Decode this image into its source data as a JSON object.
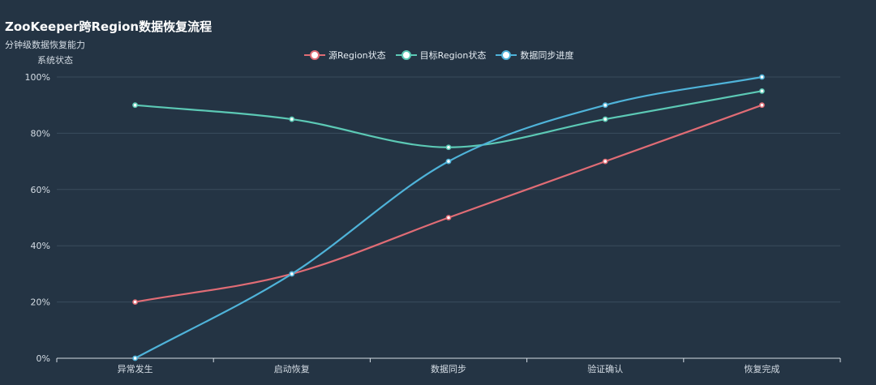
{
  "chart_data": {
    "type": "line",
    "title": "ZooKeeper跨Region数据恢复流程",
    "subtitle": "分钟级数据恢复能力",
    "ylabel": "系统状态",
    "xlabel": "",
    "categories": [
      "异常发生",
      "启动恢复",
      "数据同步",
      "验证确认",
      "恢复完成"
    ],
    "ylim": [
      0,
      100
    ],
    "yticks": [
      0,
      20,
      40,
      60,
      80,
      100
    ],
    "ytick_suffix": "%",
    "grid": true,
    "legend_position": "top-center",
    "smooth": true,
    "series": [
      {
        "name": "源Region状态",
        "color": "#e06c75",
        "values": [
          20,
          30,
          50,
          70,
          90
        ]
      },
      {
        "name": "目标Region状态",
        "color": "#5cc9b5",
        "values": [
          90,
          85,
          75,
          85,
          95
        ]
      },
      {
        "name": "数据同步进度",
        "color": "#4fb3d9",
        "values": [
          0,
          30,
          70,
          90,
          100
        ]
      }
    ]
  }
}
